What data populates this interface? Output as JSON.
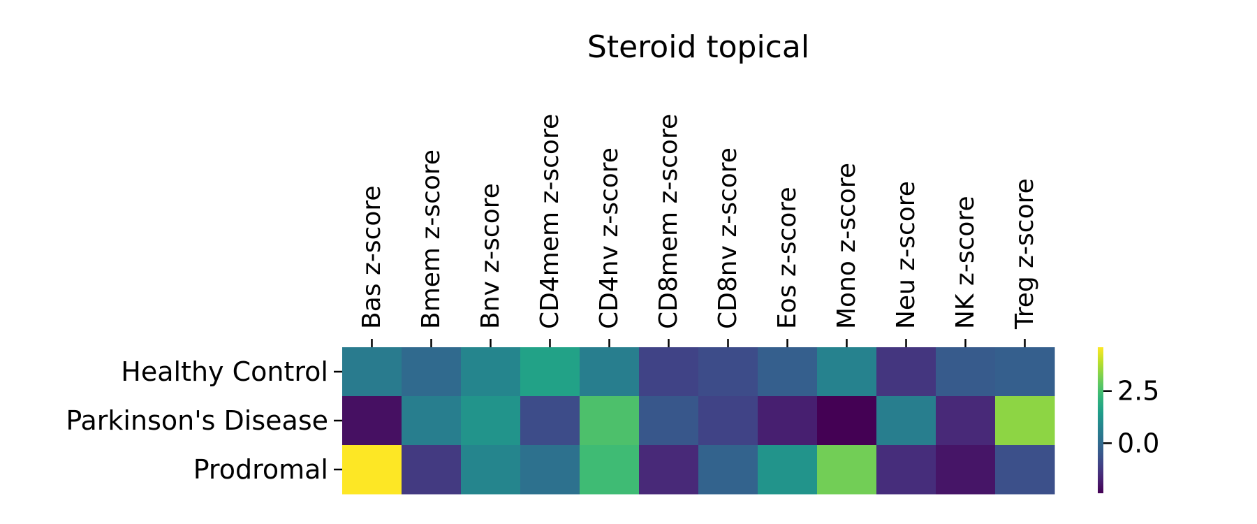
{
  "chart_data": {
    "type": "heatmap",
    "title": "Steroid topical",
    "columns": [
      "Bas z-score",
      "Bmem z-score",
      "Bnv z-score",
      "CD4mem z-score",
      "CD4nv z-score",
      "CD8mem z-score",
      "CD8nv z-score",
      "Eos z-score",
      "Mono z-score",
      "Neu z-score",
      "NK z-score",
      "Treg z-score"
    ],
    "rows": [
      "Healthy Control",
      "Parkinson's Disease",
      "Prodromal"
    ],
    "values": [
      [
        0.5,
        0.0,
        0.8,
        1.6,
        0.6,
        -1.0,
        -0.8,
        -0.3,
        0.7,
        -1.3,
        -0.4,
        -0.3
      ],
      [
        -2.1,
        0.6,
        1.2,
        -0.8,
        2.6,
        -0.5,
        -1.0,
        -1.8,
        -2.4,
        0.6,
        -1.6,
        3.4
      ],
      [
        4.6,
        -1.2,
        0.8,
        0.2,
        2.4,
        -1.6,
        -0.2,
        1.2,
        3.1,
        -1.5,
        -2.0,
        -0.7
      ]
    ],
    "colormap": "viridis",
    "colorbar": {
      "min": -2.4,
      "max": 4.6,
      "ticks": [
        0.0,
        2.5
      ],
      "tick_labels": [
        "0.0",
        "2.5"
      ]
    },
    "xaxis_position": "top",
    "xtick_rotation": 90,
    "grid": false
  }
}
